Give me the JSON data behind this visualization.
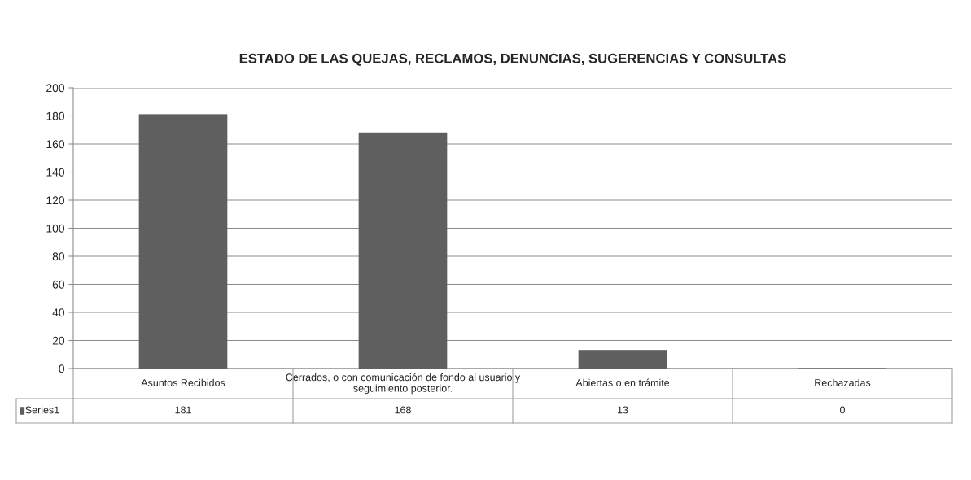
{
  "chart_data": {
    "type": "bar",
    "title": "ESTADO DE LAS QUEJAS, RECLAMOS, DENUNCIAS, SUGERENCIAS Y CONSULTAS",
    "categories": [
      "Asuntos Recibidos",
      "Cerrados, o con comunicación de fondo al usuario y seguimiento posterior.",
      "Abiertas o en trámite",
      "Rechazadas"
    ],
    "series": [
      {
        "name": "Series1",
        "color": "#5f5f5f",
        "values": [
          181,
          168,
          13,
          0
        ]
      }
    ],
    "ylim": [
      0,
      200
    ],
    "yticks": [
      0,
      20,
      40,
      60,
      80,
      100,
      120,
      140,
      160,
      180,
      200
    ],
    "grid": "y",
    "data_labels": true
  }
}
